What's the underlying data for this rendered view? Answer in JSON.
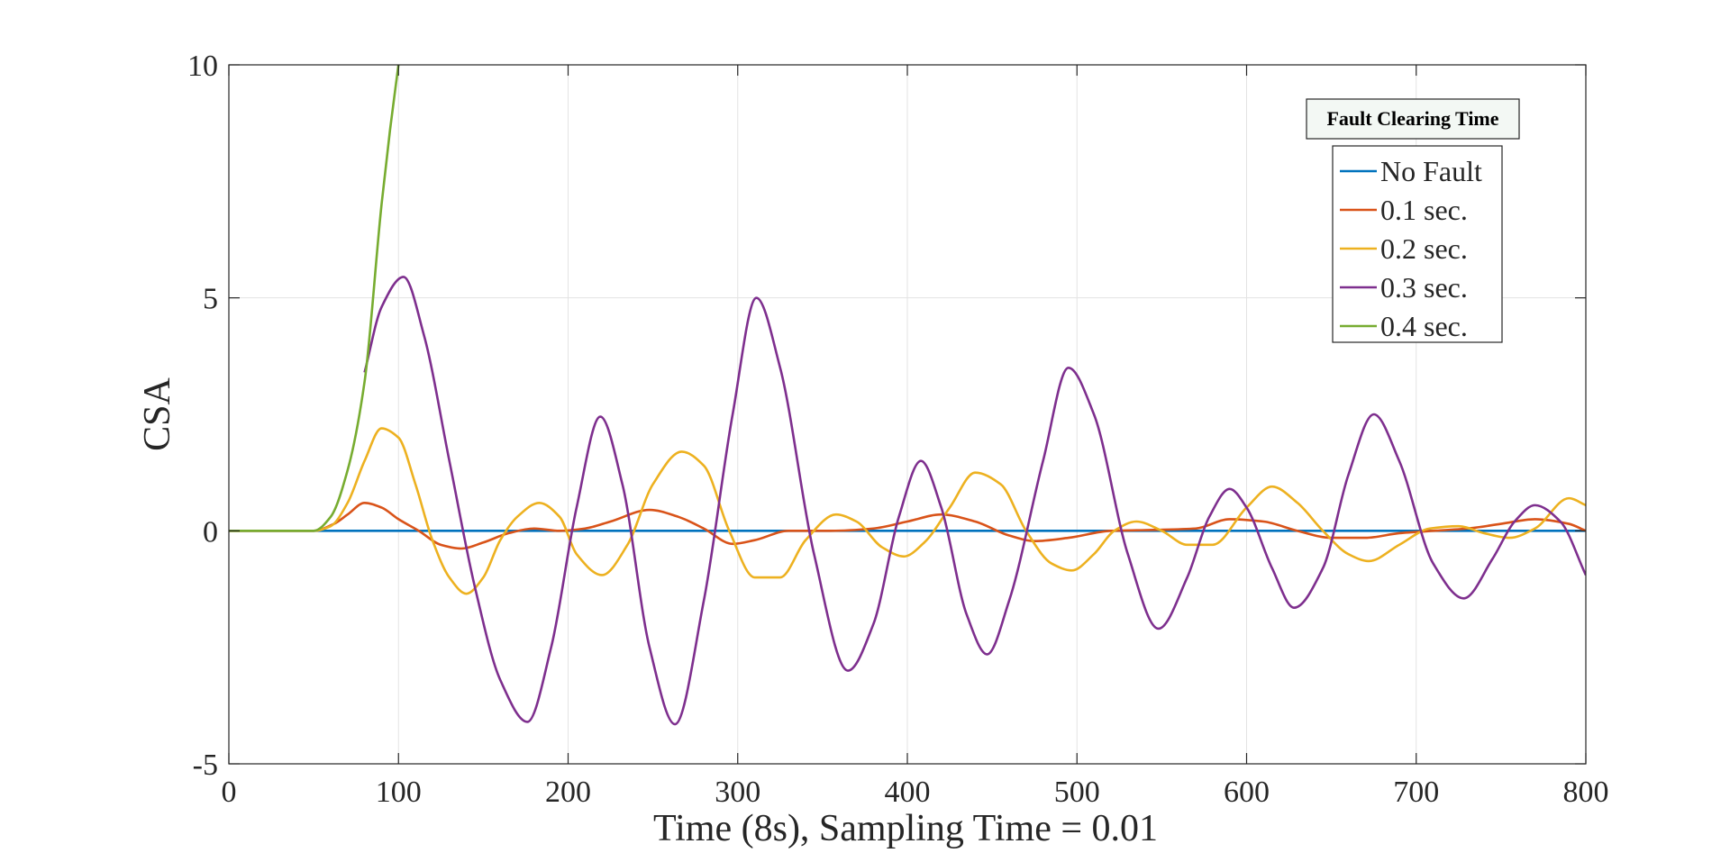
{
  "chart_data": {
    "type": "line",
    "title": "",
    "xlabel": "Time (8s), Sampling Time = 0.01",
    "ylabel": "CSA",
    "xlim": [
      0,
      800
    ],
    "ylim": [
      -5,
      10
    ],
    "xticks": [
      0,
      100,
      200,
      300,
      400,
      500,
      600,
      700,
      800
    ],
    "yticks": [
      -5,
      0,
      5,
      10
    ],
    "xtick_labels": [
      "0",
      "100",
      "200",
      "300",
      "400",
      "500",
      "600",
      "700",
      "800"
    ],
    "ytick_labels": [
      "-5",
      "0",
      "5",
      "10"
    ],
    "grid": true,
    "legend_title": "Fault Clearing Time",
    "legend_position": "top-right",
    "series": [
      {
        "name": "No Fault",
        "color": "#0072BD",
        "x": [
          0,
          800
        ],
        "y": [
          0,
          0
        ]
      },
      {
        "name": "0.1 sec.",
        "color": "#D95319",
        "x": [
          0,
          50,
          62,
          70,
          80,
          90,
          100,
          112,
          125,
          137,
          150,
          165,
          180,
          195,
          210,
          225,
          248,
          265,
          280,
          297,
          310,
          330,
          355,
          380,
          400,
          420,
          440,
          460,
          475,
          495,
          520,
          545,
          570,
          590,
          610,
          630,
          650,
          670,
          690,
          710,
          730,
          750,
          770,
          790,
          800
        ],
        "y": [
          0,
          0,
          0.15,
          0.35,
          0.6,
          0.5,
          0.25,
          0.0,
          -0.3,
          -0.38,
          -0.25,
          -0.05,
          0.05,
          0.0,
          0.05,
          0.2,
          0.45,
          0.3,
          0.05,
          -0.28,
          -0.2,
          0.0,
          0.0,
          0.05,
          0.2,
          0.35,
          0.2,
          -0.1,
          -0.22,
          -0.15,
          0.0,
          0.02,
          0.05,
          0.25,
          0.2,
          0.0,
          -0.15,
          -0.15,
          -0.05,
          0.0,
          0.05,
          0.15,
          0.25,
          0.15,
          0.0
        ]
      },
      {
        "name": "0.2 sec.",
        "color": "#EDB120",
        "x": [
          0,
          50,
          60,
          70,
          80,
          90,
          100,
          110,
          120,
          130,
          140,
          150,
          160,
          170,
          183,
          195,
          205,
          220,
          235,
          250,
          267,
          280,
          295,
          310,
          325,
          340,
          358,
          370,
          385,
          398,
          410,
          425,
          440,
          455,
          470,
          485,
          497,
          510,
          522,
          535,
          550,
          565,
          580,
          600,
          615,
          630,
          645,
          660,
          672,
          690,
          708,
          725,
          740,
          755,
          770,
          790,
          800
        ],
        "y": [
          0,
          0,
          0.1,
          0.6,
          1.5,
          2.2,
          2.0,
          1.0,
          -0.2,
          -1.0,
          -1.35,
          -1.0,
          -0.2,
          0.3,
          0.6,
          0.3,
          -0.5,
          -0.95,
          -0.3,
          1.0,
          1.7,
          1.4,
          0.0,
          -1.0,
          -1.0,
          -0.2,
          0.35,
          0.2,
          -0.35,
          -0.55,
          -0.25,
          0.5,
          1.25,
          1.0,
          0.0,
          -0.7,
          -0.85,
          -0.5,
          0.0,
          0.2,
          0.0,
          -0.3,
          -0.3,
          0.5,
          0.95,
          0.6,
          0.0,
          -0.5,
          -0.65,
          -0.3,
          0.05,
          0.1,
          -0.05,
          -0.15,
          0.05,
          0.7,
          0.55
        ]
      },
      {
        "name": "0.3 sec.",
        "color": "#7E2F8E",
        "x": [
          80,
          90,
          103,
          115,
          130,
          145,
          160,
          176,
          190,
          205,
          219,
          232,
          248,
          263,
          280,
          297,
          311,
          325,
          345,
          365,
          380,
          395,
          408,
          420,
          435,
          447,
          460,
          480,
          495,
          510,
          530,
          548,
          565,
          578,
          590,
          600,
          615,
          628,
          645,
          660,
          675,
          690,
          710,
          728,
          745,
          758,
          770,
          785,
          800
        ],
        "y": [
          3.4,
          4.8,
          5.45,
          4.2,
          1.5,
          -1.2,
          -3.2,
          -4.1,
          -2.5,
          0.5,
          2.45,
          1.0,
          -2.5,
          -4.15,
          -1.5,
          2.5,
          5.0,
          3.5,
          -0.5,
          -3.0,
          -2.0,
          0.3,
          1.5,
          0.5,
          -1.8,
          -2.65,
          -1.5,
          1.5,
          3.5,
          2.5,
          -0.5,
          -2.1,
          -1.0,
          0.3,
          0.9,
          0.5,
          -0.8,
          -1.65,
          -0.8,
          1.2,
          2.5,
          1.5,
          -0.7,
          -1.45,
          -0.6,
          0.2,
          0.55,
          0.2,
          -0.95
        ]
      },
      {
        "name": "0.4 sec.",
        "color": "#77AC30",
        "x": [
          0,
          50,
          60,
          70,
          80,
          90,
          95,
          100
        ],
        "y": [
          0,
          0,
          0.3,
          1.3,
          3.2,
          7.0,
          8.6,
          10
        ]
      }
    ]
  }
}
